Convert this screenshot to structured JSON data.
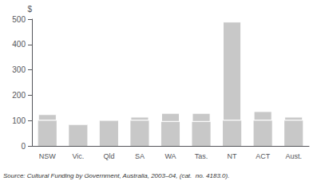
{
  "chart_data": {
    "type": "bar",
    "stacked": true,
    "categories": [
      "NSW",
      "Vic.",
      "Qld",
      "SA",
      "WA",
      "Tas.",
      "NT",
      "ACT",
      "Aust."
    ],
    "series": [
      {
        "color": "#c8c8c8",
        "values": [
          100,
          85,
          100,
          100,
          95,
          95,
          100,
          100,
          100
        ]
      },
      {
        "color": "#c8c8c8",
        "values": [
          25,
          0,
          3,
          15,
          35,
          35,
          390,
          37,
          15
        ]
      }
    ],
    "ylabel": "$",
    "annotations": [
      "Source: Cultural Funding by Government, Australia, 2003–04, (cat.  no. 4183.0)."
    ],
    "ylim": [
      0,
      500
    ],
    "yticks": [
      0,
      100,
      200,
      300,
      400,
      500
    ],
    "grid": false
  }
}
